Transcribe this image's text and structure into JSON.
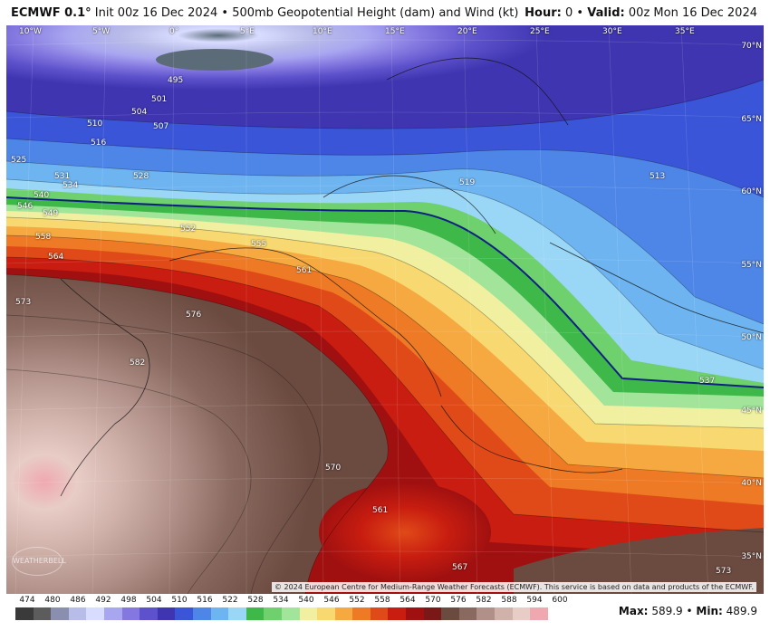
{
  "header": {
    "model": "ECMWF 0.1°",
    "init": "Init 00z 16 Dec 2024",
    "separator": "•",
    "product": "500mb Geopotential Height (dam) and Wind (kt)",
    "hour_label": "Hour:",
    "hour_value": "0",
    "valid_label": "Valid:",
    "valid_value": "00z Mon 16 Dec 2024"
  },
  "map": {
    "longitude_labels": [
      "10°W",
      "5°W",
      "0°",
      "5°E",
      "10°E",
      "15°E",
      "20°E",
      "25°E",
      "30°E",
      "35°E"
    ],
    "latitude_labels": [
      "70°N",
      "65°N",
      "60°N",
      "55°N",
      "50°N",
      "45°N",
      "40°N",
      "35°N"
    ],
    "contour_labels": [
      "495",
      "501",
      "504",
      "507",
      "510",
      "516",
      "525",
      "531",
      "528",
      "534",
      "540",
      "546",
      "549",
      "552",
      "555",
      "558",
      "564",
      "561",
      "576",
      "582",
      "573",
      "570",
      "567",
      "561",
      "573",
      "519",
      "537",
      "513"
    ],
    "copyright": "© 2024 European Centre for Medium-Range Weather Forecasts (ECMWF). This service is based on data and products of the ECMWF.",
    "logo_text": "WEATHERBELL"
  },
  "colorbar": {
    "labels": [
      "474",
      "480",
      "486",
      "492",
      "498",
      "504",
      "510",
      "516",
      "522",
      "528",
      "534",
      "540",
      "546",
      "552",
      "558",
      "564",
      "570",
      "576",
      "582",
      "588",
      "594",
      "600"
    ],
    "colors": [
      "#3a3a3a",
      "#5c5c5c",
      "#8a8fb0",
      "#b8bce8",
      "#d8dcff",
      "#a9a6f0",
      "#8478e0",
      "#5e52cc",
      "#3f35b0",
      "#3a55d8",
      "#4e86e8",
      "#6eb4f0",
      "#9ad6f6",
      "#3fb84a",
      "#6fd06e",
      "#a2e49a",
      "#f0f0a0",
      "#f8d870",
      "#f5a940",
      "#ee7a25",
      "#e04a18",
      "#c81d10",
      "#a01010",
      "#7a1818",
      "#6b4a40",
      "#8a6a60",
      "#b09088",
      "#d0b2aa",
      "#e8ccc6",
      "#f0a8b0"
    ]
  },
  "stats": {
    "max_label": "Max:",
    "max_value": "589.9",
    "min_label": "Min:",
    "min_value": "489.9",
    "separator": "•"
  }
}
